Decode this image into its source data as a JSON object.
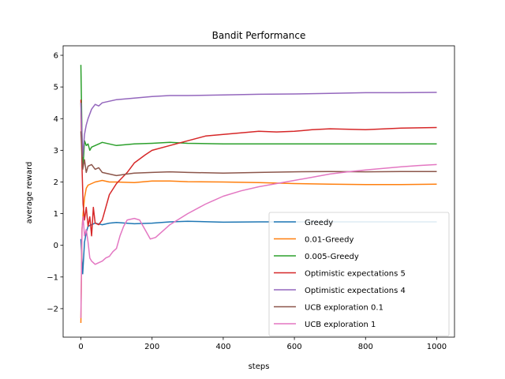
{
  "chart_data": {
    "type": "line",
    "title": "Bandit Performance",
    "xlabel": "steps",
    "ylabel": "average reward",
    "xlim": [
      -50,
      1050
    ],
    "ylim": [
      -2.9,
      6.3
    ],
    "xticks": [
      0,
      200,
      400,
      600,
      800,
      1000
    ],
    "yticks": [
      -2,
      -1,
      0,
      1,
      2,
      3,
      4,
      5,
      6
    ],
    "xtick_labels": [
      "0",
      "200",
      "400",
      "600",
      "800",
      "1000"
    ],
    "ytick_labels": [
      "−2",
      "−1",
      "0",
      "1",
      "2",
      "3",
      "4",
      "5",
      "6"
    ],
    "legend_position": "lower-right",
    "grid": false,
    "series": [
      {
        "name": "Greedy",
        "color": "#1f77b4",
        "points": [
          [
            0,
            0.2
          ],
          [
            5,
            -0.9
          ],
          [
            10,
            0.1
          ],
          [
            15,
            0.4
          ],
          [
            20,
            0.6
          ],
          [
            30,
            0.65
          ],
          [
            40,
            0.7
          ],
          [
            60,
            0.65
          ],
          [
            80,
            0.7
          ],
          [
            100,
            0.72
          ],
          [
            150,
            0.68
          ],
          [
            200,
            0.7
          ],
          [
            250,
            0.74
          ],
          [
            300,
            0.76
          ],
          [
            400,
            0.73
          ],
          [
            500,
            0.74
          ],
          [
            600,
            0.74
          ],
          [
            700,
            0.74
          ],
          [
            800,
            0.74
          ],
          [
            900,
            0.74
          ],
          [
            1000,
            0.74
          ]
        ]
      },
      {
        "name": "0.01-Greedy",
        "color": "#ff7f0e",
        "points": [
          [
            0,
            -2.45
          ],
          [
            3,
            0.5
          ],
          [
            6,
            1.0
          ],
          [
            10,
            1.5
          ],
          [
            15,
            1.8
          ],
          [
            20,
            1.9
          ],
          [
            30,
            1.95
          ],
          [
            40,
            2.0
          ],
          [
            60,
            2.05
          ],
          [
            80,
            2.0
          ],
          [
            100,
            2.0
          ],
          [
            150,
            1.98
          ],
          [
            200,
            2.03
          ],
          [
            250,
            2.03
          ],
          [
            300,
            2.01
          ],
          [
            400,
            2.0
          ],
          [
            500,
            1.98
          ],
          [
            600,
            1.95
          ],
          [
            700,
            1.93
          ],
          [
            800,
            1.92
          ],
          [
            900,
            1.92
          ],
          [
            1000,
            1.93
          ]
        ]
      },
      {
        "name": "0.005-Greedy",
        "color": "#2ca02c",
        "points": [
          [
            0,
            5.7
          ],
          [
            3,
            3.5
          ],
          [
            6,
            2.5
          ],
          [
            10,
            3.3
          ],
          [
            15,
            3.15
          ],
          [
            20,
            3.2
          ],
          [
            25,
            3.0
          ],
          [
            30,
            3.1
          ],
          [
            40,
            3.15
          ],
          [
            60,
            3.25
          ],
          [
            80,
            3.2
          ],
          [
            100,
            3.15
          ],
          [
            150,
            3.2
          ],
          [
            200,
            3.22
          ],
          [
            250,
            3.25
          ],
          [
            300,
            3.22
          ],
          [
            400,
            3.2
          ],
          [
            500,
            3.2
          ],
          [
            600,
            3.2
          ],
          [
            700,
            3.2
          ],
          [
            800,
            3.2
          ],
          [
            900,
            3.2
          ],
          [
            1000,
            3.2
          ]
        ]
      },
      {
        "name": "Optimistic expectations 5",
        "color": "#d62728",
        "points": [
          [
            0,
            4.6
          ],
          [
            3,
            2.5
          ],
          [
            6,
            1.3
          ],
          [
            10,
            0.8
          ],
          [
            15,
            1.2
          ],
          [
            20,
            0.6
          ],
          [
            25,
            0.9
          ],
          [
            30,
            0.3
          ],
          [
            35,
            1.2
          ],
          [
            40,
            0.7
          ],
          [
            50,
            0.65
          ],
          [
            60,
            0.8
          ],
          [
            70,
            1.2
          ],
          [
            80,
            1.6
          ],
          [
            100,
            1.95
          ],
          [
            130,
            2.3
          ],
          [
            150,
            2.6
          ],
          [
            180,
            2.85
          ],
          [
            200,
            3.0
          ],
          [
            250,
            3.15
          ],
          [
            300,
            3.3
          ],
          [
            350,
            3.45
          ],
          [
            400,
            3.5
          ],
          [
            450,
            3.55
          ],
          [
            500,
            3.6
          ],
          [
            550,
            3.58
          ],
          [
            600,
            3.6
          ],
          [
            650,
            3.65
          ],
          [
            700,
            3.68
          ],
          [
            800,
            3.65
          ],
          [
            900,
            3.7
          ],
          [
            1000,
            3.72
          ]
        ]
      },
      {
        "name": "Optimistic expectations 4",
        "color": "#9467bd",
        "points": [
          [
            0,
            4.5
          ],
          [
            5,
            2.8
          ],
          [
            10,
            3.5
          ],
          [
            15,
            3.8
          ],
          [
            20,
            4.0
          ],
          [
            30,
            4.3
          ],
          [
            40,
            4.45
          ],
          [
            50,
            4.4
          ],
          [
            60,
            4.5
          ],
          [
            80,
            4.55
          ],
          [
            100,
            4.6
          ],
          [
            150,
            4.65
          ],
          [
            200,
            4.7
          ],
          [
            250,
            4.73
          ],
          [
            300,
            4.73
          ],
          [
            400,
            4.75
          ],
          [
            500,
            4.77
          ],
          [
            600,
            4.78
          ],
          [
            700,
            4.8
          ],
          [
            800,
            4.82
          ],
          [
            900,
            4.82
          ],
          [
            1000,
            4.83
          ]
        ]
      },
      {
        "name": "UCB exploration 0.1",
        "color": "#8c564b",
        "points": [
          [
            0,
            3.6
          ],
          [
            5,
            2.4
          ],
          [
            10,
            2.7
          ],
          [
            15,
            2.3
          ],
          [
            20,
            2.5
          ],
          [
            30,
            2.55
          ],
          [
            40,
            2.4
          ],
          [
            50,
            2.45
          ],
          [
            60,
            2.3
          ],
          [
            80,
            2.25
          ],
          [
            100,
            2.2
          ],
          [
            130,
            2.25
          ],
          [
            150,
            2.28
          ],
          [
            200,
            2.3
          ],
          [
            250,
            2.32
          ],
          [
            300,
            2.3
          ],
          [
            400,
            2.28
          ],
          [
            500,
            2.3
          ],
          [
            600,
            2.32
          ],
          [
            700,
            2.33
          ],
          [
            800,
            2.32
          ],
          [
            900,
            2.33
          ],
          [
            1000,
            2.33
          ]
        ]
      },
      {
        "name": "UCB exploration 1",
        "color": "#e377c2",
        "points": [
          [
            0,
            -2.3
          ],
          [
            3,
            0.5
          ],
          [
            6,
            0.9
          ],
          [
            10,
            0.3
          ],
          [
            15,
            0.5
          ],
          [
            20,
            0.1
          ],
          [
            25,
            -0.4
          ],
          [
            30,
            -0.5
          ],
          [
            40,
            -0.6
          ],
          [
            50,
            -0.55
          ],
          [
            60,
            -0.5
          ],
          [
            70,
            -0.4
          ],
          [
            80,
            -0.35
          ],
          [
            90,
            -0.2
          ],
          [
            100,
            -0.1
          ],
          [
            110,
            0.3
          ],
          [
            120,
            0.6
          ],
          [
            130,
            0.8
          ],
          [
            150,
            0.85
          ],
          [
            165,
            0.8
          ],
          [
            180,
            0.5
          ],
          [
            195,
            0.2
          ],
          [
            210,
            0.25
          ],
          [
            230,
            0.45
          ],
          [
            250,
            0.65
          ],
          [
            300,
            1.0
          ],
          [
            350,
            1.3
          ],
          [
            400,
            1.55
          ],
          [
            450,
            1.72
          ],
          [
            500,
            1.85
          ],
          [
            550,
            1.95
          ],
          [
            600,
            2.05
          ],
          [
            650,
            2.15
          ],
          [
            700,
            2.25
          ],
          [
            750,
            2.32
          ],
          [
            800,
            2.38
          ],
          [
            850,
            2.43
          ],
          [
            900,
            2.48
          ],
          [
            950,
            2.52
          ],
          [
            1000,
            2.55
          ]
        ]
      }
    ]
  }
}
